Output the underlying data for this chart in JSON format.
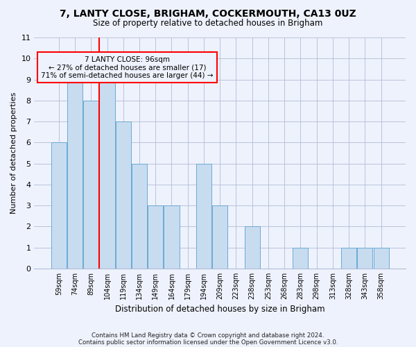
{
  "title1": "7, LANTY CLOSE, BRIGHAM, COCKERMOUTH, CA13 0UZ",
  "title2": "Size of property relative to detached houses in Brigham",
  "xlabel": "Distribution of detached houses by size in Brigham",
  "ylabel": "Number of detached properties",
  "categories": [
    "59sqm",
    "74sqm",
    "89sqm",
    "104sqm",
    "119sqm",
    "134sqm",
    "149sqm",
    "164sqm",
    "179sqm",
    "194sqm",
    "209sqm",
    "223sqm",
    "238sqm",
    "253sqm",
    "268sqm",
    "283sqm",
    "298sqm",
    "313sqm",
    "328sqm",
    "343sqm",
    "358sqm"
  ],
  "values": [
    6,
    9,
    8,
    9,
    7,
    5,
    3,
    3,
    0,
    5,
    3,
    0,
    2,
    0,
    0,
    1,
    0,
    0,
    1,
    1,
    1
  ],
  "bar_color": "#c8dcf0",
  "bar_edge_color": "#6aaad4",
  "red_line_x": 2.5,
  "annotation_title": "7 LANTY CLOSE: 96sqm",
  "annotation_line1": "← 27% of detached houses are smaller (17)",
  "annotation_line2": "71% of semi-detached houses are larger (44) →",
  "ylim": [
    0,
    11
  ],
  "yticks": [
    0,
    1,
    2,
    3,
    4,
    5,
    6,
    7,
    8,
    9,
    10,
    11
  ],
  "footer1": "Contains HM Land Registry data © Crown copyright and database right 2024.",
  "footer2": "Contains public sector information licensed under the Open Government Licence v3.0.",
  "bg_color": "#eef2fc"
}
